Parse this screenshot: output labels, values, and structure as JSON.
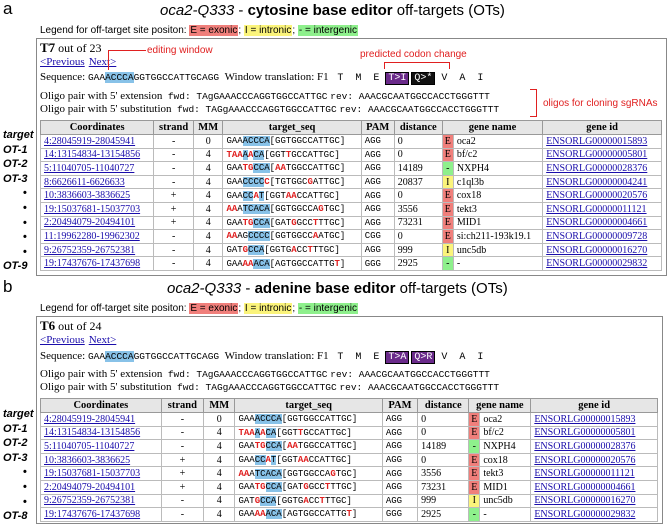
{
  "panels": [
    {
      "letter": "a",
      "title_gene": "oca2-Q333",
      "title_sep": " - ",
      "title_editor": "cytosine base editor",
      "title_suffix": " off-targets (OTs)",
      "legend_prefix": "Legend for off-target site positon: ",
      "legend_exonic": "E = exonic",
      "legend_intronic": "I = intronic",
      "legend_intergenic": "- = intergenic",
      "sel_label": "T7",
      "sel_of": " out of 23",
      "nav_prev": "<Previous",
      "nav_next": "Next>",
      "sequence_label": "Sequence: ",
      "seq_pre": "GAA",
      "seq_hl": "ACCCA",
      "seq_post": "GGTGGCCATTGCAGG",
      "window_label": "Window translation: F1",
      "translation": [
        "T",
        "M",
        "E"
      ],
      "change1": "T>I",
      "change2": "Q>*",
      "translation_after": [
        "V",
        "A",
        "I"
      ],
      "oligo_ext_label": "Oligo pair with 5' extension",
      "oligo_ext_fwd": "fwd: TAgGAAACCCAGGTGGCCATTGC",
      "oligo_ext_rev": "rev: AAACGCAATGGCCACCTGGGTTT",
      "oligo_sub_label": "Oligo pair with 5' substitution",
      "oligo_sub_fwd": "fwd: TAGgAAACCCAGGTGGCCATTGC",
      "oligo_sub_rev": "rev: AAACGCAATGGCCACCTGGGTTT",
      "annotations": {
        "editing_window": "editing window",
        "codon_change": "predicted codon change",
        "oligos": "oligos for cloning sgRNAs"
      },
      "row_labels": [
        "target",
        "OT-1",
        "OT-2",
        "OT-3",
        "•",
        "•",
        "•",
        "•",
        "•",
        "OT-9"
      ],
      "headers": [
        "Coordinates",
        "strand",
        "MM",
        "target_seq",
        "PAM",
        "distance",
        "gene name",
        "gene id"
      ],
      "rows": [
        {
          "coord": "4:28045919-28045941",
          "strand": "-",
          "mm": "0",
          "seq": [
            [
              "g",
              "GAA"
            ],
            [
              "h",
              "ACCCA"
            ],
            [
              "b",
              "[GGTGGCCATTGC]"
            ]
          ],
          "pam": "AGG",
          "dist": "0",
          "reg": "E",
          "gene": "oca2",
          "gid": "ENSORLG00000015893"
        },
        {
          "coord": "14:13154834-13154856",
          "strand": "-",
          "mm": "4",
          "seq": [
            [
              "m",
              "TAA"
            ],
            [
              "h",
              "A"
            ],
            [
              "m",
              "A"
            ],
            [
              "h",
              "CA"
            ],
            [
              "b",
              "[GGT"
            ],
            [
              "m",
              "T"
            ],
            [
              "b",
              "GCCATTGC]"
            ]
          ],
          "pam": "AGG",
          "dist": "0",
          "reg": "E",
          "gene": "bf/c2",
          "gid": "ENSORLG00000005801"
        },
        {
          "coord": "5:11040705-11040727",
          "strand": "-",
          "mm": "4",
          "seq": [
            [
              "g",
              "GAA"
            ],
            [
              "m",
              "TG"
            ],
            [
              "h",
              "CCA"
            ],
            [
              "b",
              "["
            ],
            [
              "m",
              "AA"
            ],
            [
              "b",
              "TGGCCATTGC]"
            ]
          ],
          "pam": "AGG",
          "dist": "14189",
          "reg": "N",
          "gene": "NXPH4",
          "gid": "ENSORLG00000028376"
        },
        {
          "coord": "8:6626611-6626633",
          "strand": "-",
          "mm": "4",
          "seq": [
            [
              "g",
              "GAA"
            ],
            [
              "h",
              "CCCC"
            ],
            [
              "m",
              "C"
            ],
            [
              "b",
              "[TGTGGC"
            ],
            [
              "m",
              "G"
            ],
            [
              "b",
              "ATTGC]"
            ]
          ],
          "pam": "AGG",
          "dist": "20837",
          "reg": "I",
          "gene": "c1ql3b",
          "gid": "ENSORLG00000004241"
        },
        {
          "coord": "10:3836603-3836625",
          "strand": "+",
          "mm": "4",
          "seq": [
            [
              "g",
              "GAA"
            ],
            [
              "h",
              "CC"
            ],
            [
              "m",
              "A"
            ],
            [
              "h",
              "T"
            ],
            [
              "b",
              "[GGT"
            ],
            [
              "m",
              "AA"
            ],
            [
              "b",
              "CCATTGC]"
            ]
          ],
          "pam": "AGG",
          "dist": "0",
          "reg": "E",
          "gene": "cox18",
          "gid": "ENSORLG00000020576"
        },
        {
          "coord": "19:15037681-15037703",
          "strand": "+",
          "mm": "4",
          "seq": [
            [
              "m",
              "AA"
            ],
            [
              "g",
              "A"
            ],
            [
              "h",
              "TCACA"
            ],
            [
              "b",
              "[GGTGGCCA"
            ],
            [
              "m",
              "G"
            ],
            [
              "b",
              "TGC]"
            ]
          ],
          "pam": "AGG",
          "dist": "3556",
          "reg": "E",
          "gene": "tekt3",
          "gid": "ENSORLG00000011121"
        },
        {
          "coord": "2:20494079-20494101",
          "strand": "+",
          "mm": "4",
          "seq": [
            [
              "g",
              "GAA"
            ],
            [
              "m",
              "TG"
            ],
            [
              "h",
              "CCA"
            ],
            [
              "b",
              "[GAT"
            ],
            [
              "m",
              "G"
            ],
            [
              "b",
              "GCC"
            ],
            [
              "m",
              "T"
            ],
            [
              "b",
              "TTGC]"
            ]
          ],
          "pam": "AGG",
          "dist": "73231",
          "reg": "E",
          "gene": "MID1",
          "gid": "ENSORLG00000004661"
        },
        {
          "coord": "11:19962280-19962302",
          "strand": "-",
          "mm": "4",
          "seq": [
            [
              "m",
              "AA"
            ],
            [
              "g",
              "AG"
            ],
            [
              "h",
              "CCCC"
            ],
            [
              "b",
              "[GGTGGCC"
            ],
            [
              "m",
              "A"
            ],
            [
              "b",
              "ATGC]"
            ]
          ],
          "pam": "CGG",
          "dist": "0",
          "reg": "E",
          "gene": "si:ch211-193k19.1",
          "gid": "ENSORLG00000009728"
        },
        {
          "coord": "9:26752359-26752381",
          "strand": "-",
          "mm": "4",
          "seq": [
            [
              "g",
              "GAT"
            ],
            [
              "m",
              "G"
            ],
            [
              "h",
              "CCA"
            ],
            [
              "b",
              "[GGTG"
            ],
            [
              "m",
              "A"
            ],
            [
              "b",
              "CC"
            ],
            [
              "m",
              "T"
            ],
            [
              "b",
              "TTGC]"
            ]
          ],
          "pam": "AGG",
          "dist": "999",
          "reg": "I",
          "gene": "unc5db",
          "gid": "ENSORLG00000016270"
        },
        {
          "coord": "19:17437676-17437698",
          "strand": "-",
          "mm": "4",
          "seq": [
            [
              "g",
              "GAA"
            ],
            [
              "m",
              "AA"
            ],
            [
              "h",
              "ACA"
            ],
            [
              "b",
              "[AGTGGCCATTG"
            ],
            [
              "m",
              "T"
            ],
            [
              "b",
              "]"
            ]
          ],
          "pam": "GGG",
          "dist": "2925",
          "reg": "N",
          "gene": "-",
          "gid": "ENSORLG00000029832"
        }
      ]
    },
    {
      "letter": "b",
      "title_gene": "oca2-Q333",
      "title_sep": " - ",
      "title_editor": "adenine base editor",
      "title_suffix": " off-targets (OTs)",
      "legend_prefix": "Legend for off-target site positon: ",
      "legend_exonic": "E = exonic",
      "legend_intronic": "I = intronic",
      "legend_intergenic": "- = intergenic",
      "sel_label": "T6",
      "sel_of": " out of 24",
      "nav_prev": "<Previous",
      "nav_next": "Next>",
      "sequence_label": "Sequence: ",
      "seq_pre": "GAA",
      "seq_hl": "ACCCA",
      "seq_post": "GGTGGCCATTGCAGG",
      "window_label": "Window translation: F1",
      "translation": [
        "T",
        "M",
        "E"
      ],
      "change1": "T>A",
      "change2": "Q>R",
      "translation_after": [
        "V",
        "A",
        "I"
      ],
      "oligo_ext_label": "Oligo pair with 5' extension",
      "oligo_ext_fwd": "fwd: TAgGAAACCCAGGTGGCCATTGC",
      "oligo_ext_rev": "rev: AAACGCAATGGCCACCTGGGTTT",
      "oligo_sub_label": "Oligo pair with 5' substitution",
      "oligo_sub_fwd": "fwd: TAGgAAACCCAGGTGGCCATTGC",
      "oligo_sub_rev": "rev: AAACGCAATGGCCACCTGGGTTT",
      "row_labels": [
        "target",
        "OT-1",
        "OT-2",
        "OT-3",
        "•",
        "•",
        "•",
        "OT-8"
      ],
      "headers": [
        "Coordinates",
        "strand",
        "MM",
        "target_seq",
        "PAM",
        "distance",
        "gene name",
        "gene id"
      ],
      "rows": [
        {
          "coord": "4:28045919-28045941",
          "strand": "-",
          "mm": "0",
          "seq": [
            [
              "g",
              "GAA"
            ],
            [
              "h",
              "ACCCA"
            ],
            [
              "b",
              "[GGTGGCCATTGC]"
            ]
          ],
          "pam": "AGG",
          "dist": "0",
          "reg": "E",
          "gene": "oca2",
          "gid": "ENSORLG00000015893"
        },
        {
          "coord": "14:13154834-13154856",
          "strand": "-",
          "mm": "4",
          "seq": [
            [
              "m",
              "TAA"
            ],
            [
              "h",
              "A"
            ],
            [
              "m",
              "A"
            ],
            [
              "h",
              "CA"
            ],
            [
              "b",
              "[GGT"
            ],
            [
              "m",
              "T"
            ],
            [
              "b",
              "GCCATTGC]"
            ]
          ],
          "pam": "AGG",
          "dist": "0",
          "reg": "E",
          "gene": "bf/c2",
          "gid": "ENSORLG00000005801"
        },
        {
          "coord": "5:11040705-11040727",
          "strand": "-",
          "mm": "4",
          "seq": [
            [
              "g",
              "GAA"
            ],
            [
              "m",
              "TG"
            ],
            [
              "h",
              "CCA"
            ],
            [
              "b",
              "["
            ],
            [
              "m",
              "AA"
            ],
            [
              "b",
              "TGGCCATTGC]"
            ]
          ],
          "pam": "AGG",
          "dist": "14189",
          "reg": "N",
          "gene": "NXPH4",
          "gid": "ENSORLG00000028376"
        },
        {
          "coord": "10:3836603-3836625",
          "strand": "+",
          "mm": "4",
          "seq": [
            [
              "g",
              "GAA"
            ],
            [
              "h",
              "CC"
            ],
            [
              "m",
              "A"
            ],
            [
              "h",
              "T"
            ],
            [
              "b",
              "[GGT"
            ],
            [
              "m",
              "AA"
            ],
            [
              "b",
              "CCATTGC]"
            ]
          ],
          "pam": "AGG",
          "dist": "0",
          "reg": "E",
          "gene": "cox18",
          "gid": "ENSORLG00000020576"
        },
        {
          "coord": "19:15037681-15037703",
          "strand": "+",
          "mm": "4",
          "seq": [
            [
              "m",
              "AA"
            ],
            [
              "g",
              "A"
            ],
            [
              "h",
              "TCACA"
            ],
            [
              "b",
              "[GGTGGCCA"
            ],
            [
              "m",
              "G"
            ],
            [
              "b",
              "TGC]"
            ]
          ],
          "pam": "AGG",
          "dist": "3556",
          "reg": "E",
          "gene": "tekt3",
          "gid": "ENSORLG00000011121"
        },
        {
          "coord": "2:20494079-20494101",
          "strand": "+",
          "mm": "4",
          "seq": [
            [
              "g",
              "GAA"
            ],
            [
              "m",
              "TG"
            ],
            [
              "h",
              "CCA"
            ],
            [
              "b",
              "[GAT"
            ],
            [
              "m",
              "G"
            ],
            [
              "b",
              "GCC"
            ],
            [
              "m",
              "T"
            ],
            [
              "b",
              "TTGC]"
            ]
          ],
          "pam": "AGG",
          "dist": "73231",
          "reg": "E",
          "gene": "MID1",
          "gid": "ENSORLG00000004661"
        },
        {
          "coord": "9:26752359-26752381",
          "strand": "-",
          "mm": "4",
          "seq": [
            [
              "g",
              "GAT"
            ],
            [
              "m",
              "G"
            ],
            [
              "h",
              "CCA"
            ],
            [
              "b",
              "[GGTG"
            ],
            [
              "m",
              "A"
            ],
            [
              "b",
              "CC"
            ],
            [
              "m",
              "T"
            ],
            [
              "b",
              "TTGC]"
            ]
          ],
          "pam": "AGG",
          "dist": "999",
          "reg": "I",
          "gene": "unc5db",
          "gid": "ENSORLG00000016270"
        },
        {
          "coord": "19:17437676-17437698",
          "strand": "-",
          "mm": "4",
          "seq": [
            [
              "g",
              "GAA"
            ],
            [
              "m",
              "AA"
            ],
            [
              "h",
              "ACA"
            ],
            [
              "b",
              "[AGTGGCCATTG"
            ],
            [
              "m",
              "T"
            ],
            [
              "b",
              "]"
            ]
          ],
          "pam": "GGG",
          "dist": "2925",
          "reg": "N",
          "gene": "-",
          "gid": "ENSORLG00000029832"
        }
      ]
    }
  ]
}
